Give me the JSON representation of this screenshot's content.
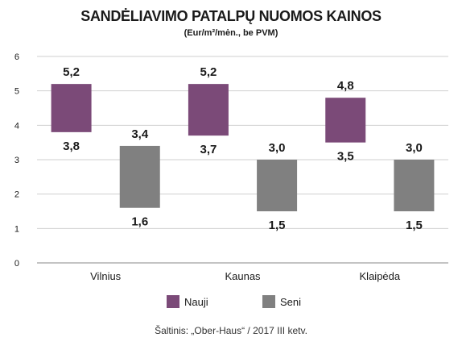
{
  "title": "SANDĖLIAVIMO PATALPŲ NUOMOS KAINOS",
  "subtitle": "(Eur/m²/mėn., be PVM)",
  "source": "Šaltinis: „Ober-Haus“ / 2017 III ketv.",
  "chart_data": {
    "type": "bar",
    "subtype": "floating-range",
    "categories": [
      "Vilnius",
      "Kaunas",
      "Klaipėda"
    ],
    "ylim": [
      0,
      6
    ],
    "yticks": [
      "0",
      "1",
      "2",
      "3",
      "4",
      "5",
      "6"
    ],
    "grid": true,
    "legend_placement": "bottom-center",
    "series": [
      {
        "name": "Nauji",
        "color": "#7b4a78",
        "low": [
          3.8,
          3.7,
          3.5
        ],
        "high": [
          5.2,
          5.2,
          4.8
        ],
        "low_labels": [
          "3,8",
          "3,7",
          "3,5"
        ],
        "high_labels": [
          "5,2",
          "5,2",
          "4,8"
        ]
      },
      {
        "name": "Seni",
        "color": "#808080",
        "low": [
          1.6,
          1.5,
          1.5
        ],
        "high": [
          3.4,
          3.0,
          3.0
        ],
        "low_labels": [
          "1,6",
          "1,5",
          "1,5"
        ],
        "high_labels": [
          "3,4",
          "3,0",
          "3,0"
        ]
      }
    ]
  }
}
